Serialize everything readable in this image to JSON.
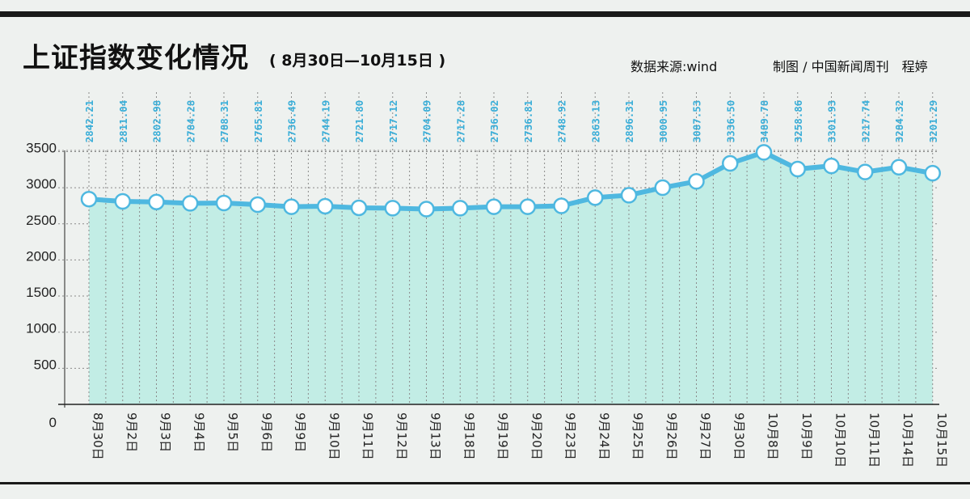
{
  "header": {
    "title": "上证指数变化情况",
    "subtitle": "( 8月30日—10月15日 )",
    "source": "数据来源:wind",
    "credit": "制图 / 中国新闻周刊　程婷"
  },
  "colors": {
    "line": "#4fb8e0",
    "area": "#c2ede5",
    "value_label": "#3aaed8",
    "text": "#222222"
  },
  "chart_data": {
    "type": "area",
    "title": "上证指数变化情况",
    "subtitle": "( 8月30日—10月15日 )",
    "categories": [
      "8月30日",
      "9月2日",
      "9月3日",
      "9月4日",
      "9月5日",
      "9月6日",
      "9月9日",
      "9月10日",
      "9月11日",
      "9月12日",
      "9月13日",
      "9月18日",
      "9月19日",
      "9月20日",
      "9月23日",
      "9月24日",
      "9月25日",
      "9月26日",
      "9月27日",
      "9月30日",
      "10月8日",
      "10月9日",
      "10月10日",
      "10月11日",
      "10月14日",
      "10月15日"
    ],
    "values": [
      2842.21,
      2811.04,
      2802.98,
      2784.28,
      2788.31,
      2765.81,
      2736.49,
      2744.19,
      2721.8,
      2717.12,
      2704.09,
      2717.28,
      2736.02,
      2736.81,
      2748.92,
      2863.13,
      2896.31,
      3000.95,
      3087.53,
      3336.5,
      3489.78,
      3258.86,
      3301.93,
      3217.74,
      3284.32,
      3201.29
    ],
    "value_labels": [
      "2842.21",
      "2811.04",
      "2802.98",
      "2784.28",
      "2788.31",
      "2765.81",
      "2736.49",
      "2744.19",
      "2721.80",
      "2717.12",
      "2704.09",
      "2717.28",
      "2736.02",
      "2736.81",
      "2748.92",
      "2863.13",
      "2896.31",
      "3000.95",
      "3087.53",
      "3336.50",
      "3489.78",
      "3258.86",
      "3301.93",
      "3217.74",
      "3284.32",
      "3201.29"
    ],
    "yticks": [
      "0",
      "500",
      "1000",
      "1500",
      "2000",
      "2500",
      "3000",
      "3500"
    ],
    "ylim": [
      0,
      3750
    ],
    "grid": true,
    "xlabel": "",
    "ylabel": ""
  }
}
